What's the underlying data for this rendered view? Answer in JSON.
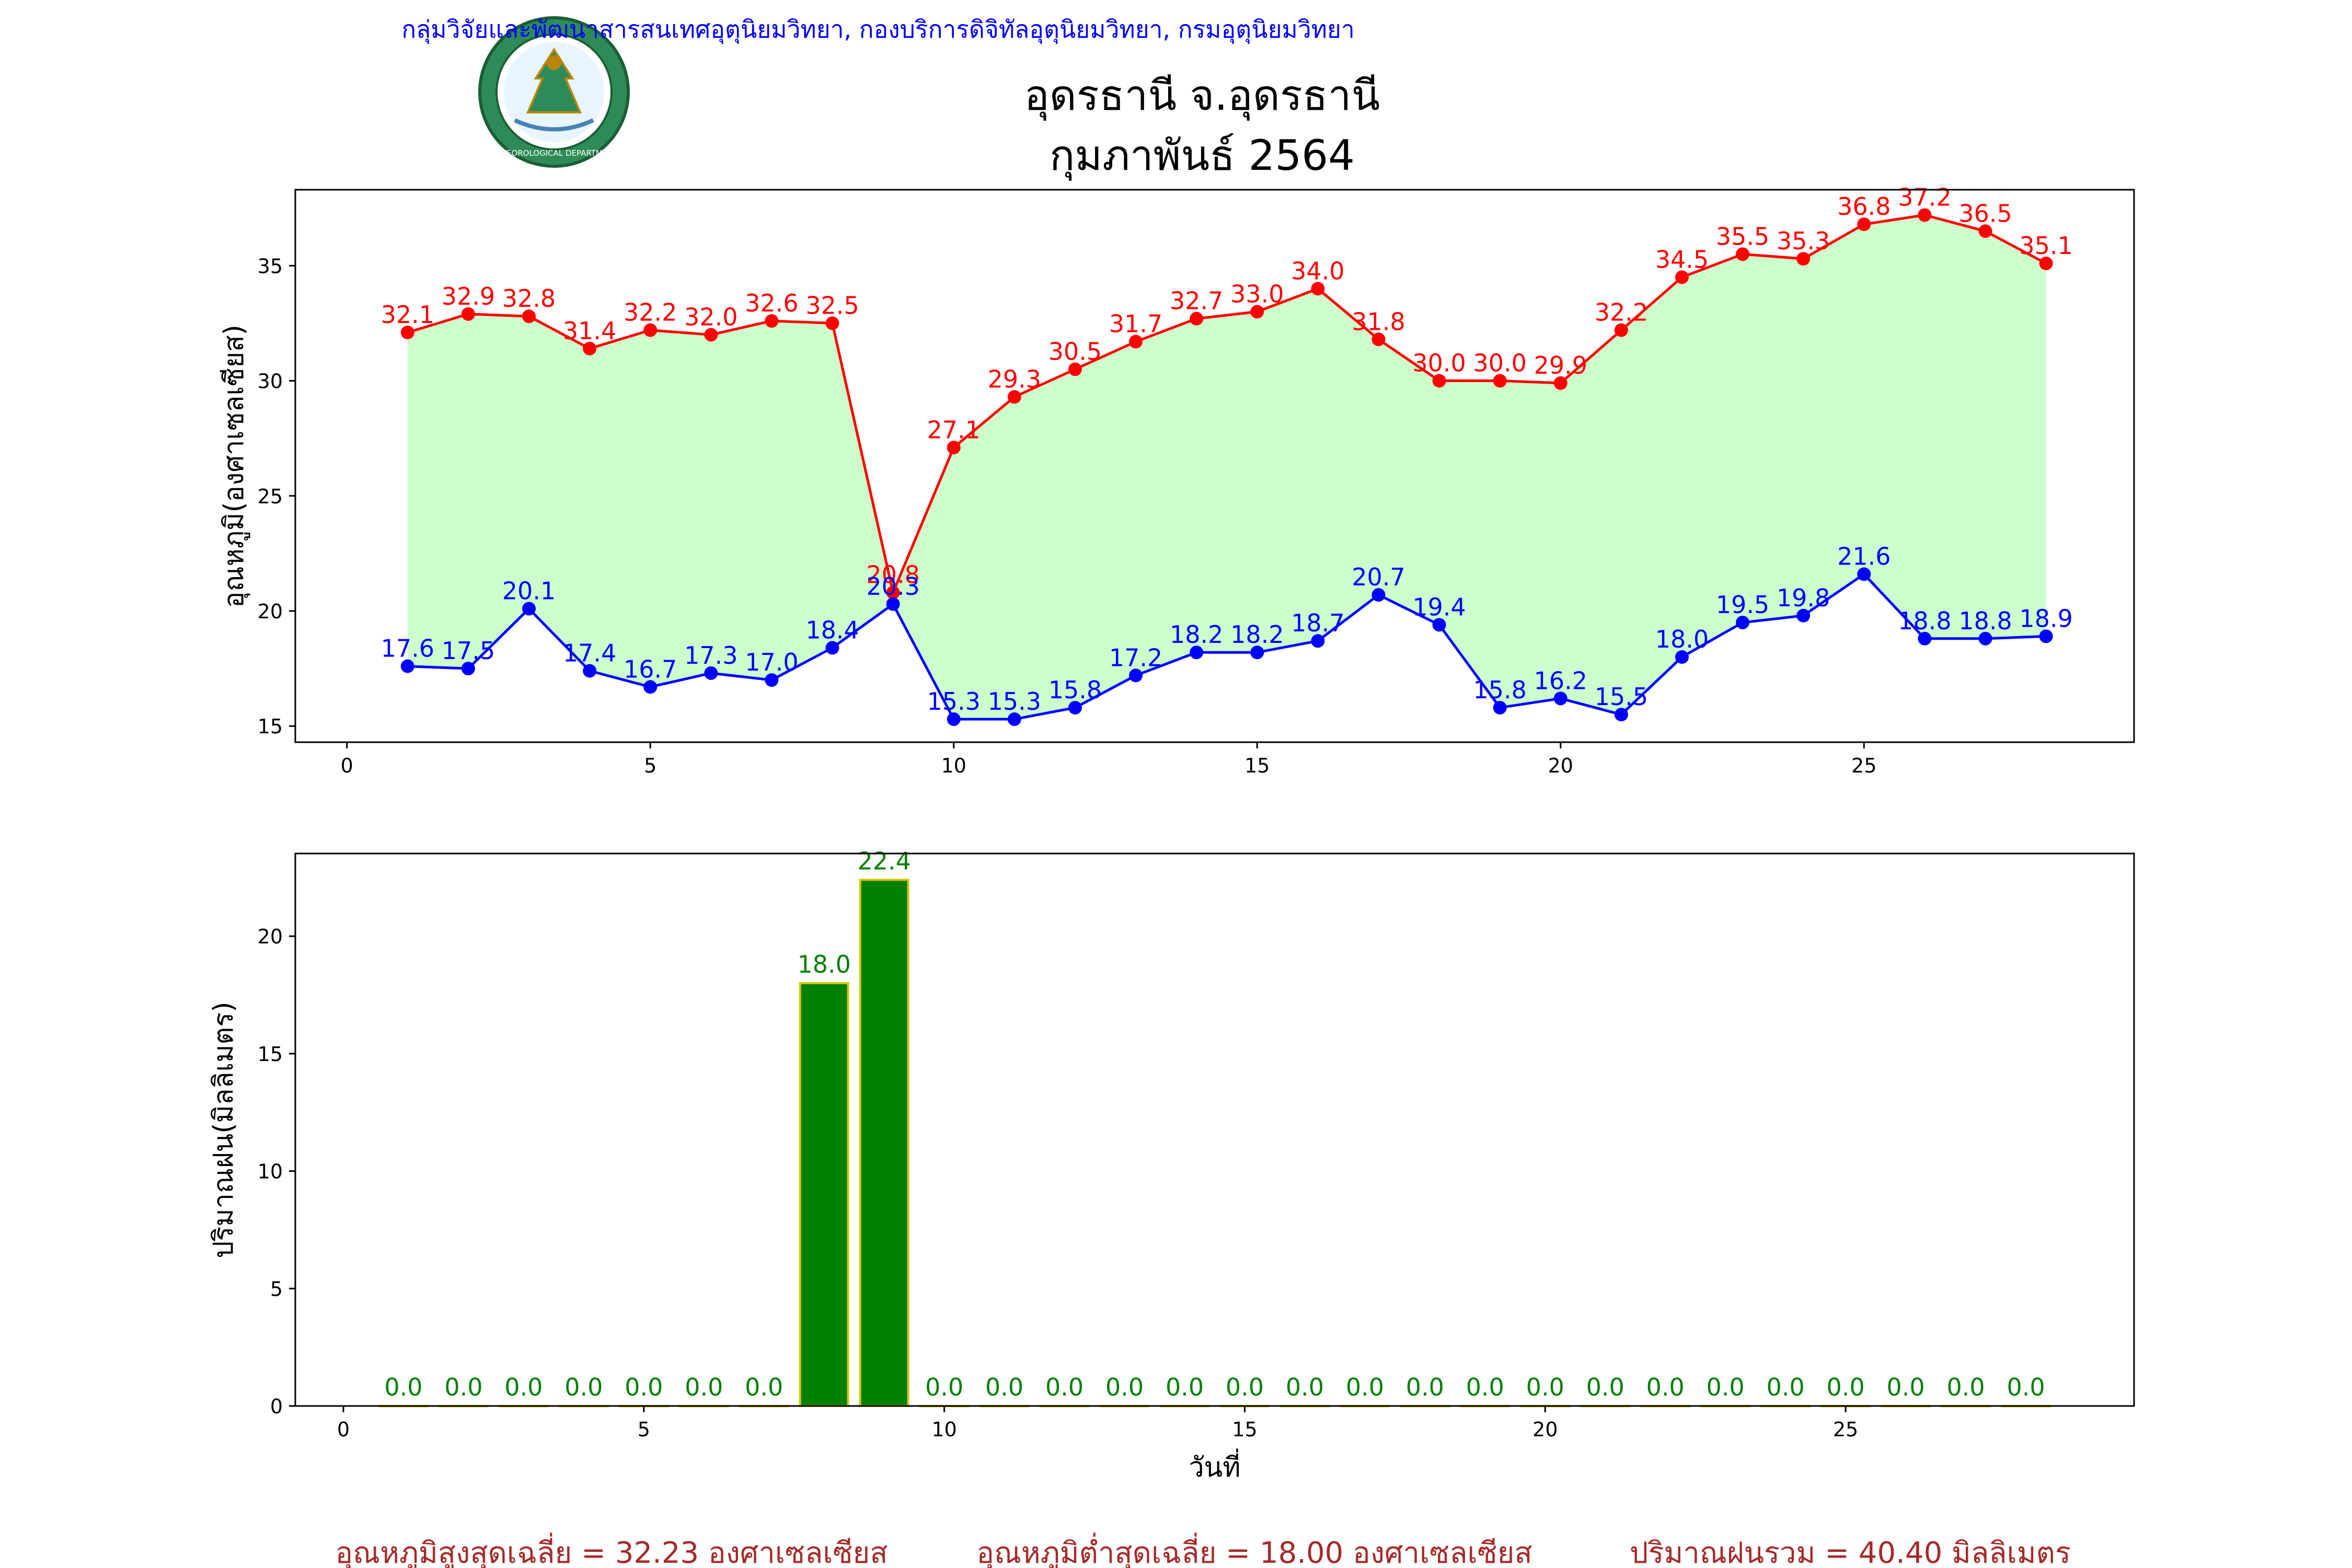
{
  "header": {
    "agency": "กลุ่มวิจัยและพัฒนาสารสนเทศอุตุนิยมวิทยา, กองบริการดิจิทัลอุตุนิยมวิทยา, กรมอุตุนิยมวิทยา",
    "station": "อุดรธานี จ.อุดรธานี",
    "period": "กุมภาพันธ์ 2564",
    "logo_text": "METEOROLOGICAL DEPARTMENT"
  },
  "footer": {
    "avg_max": "อุณหภูมิสูงสุดเฉลี่ย = 32.23 องศาเซลเซียส",
    "avg_min": "อุณหภูมิต่ำสุดเฉลี่ย = 18.00 องศาเซลเซียส",
    "rain_total": "ปริมาณฝนรวม = 40.40 มิลลิเมตร"
  },
  "colors": {
    "max_line": "#ff0000",
    "min_line": "#0000ff",
    "fill": "#ccffcc",
    "bar": "#008000",
    "bar_edge": "#d4c800",
    "bar_label": "#008000",
    "header_agency": "#0000ff",
    "footer_text": "#a52a2a"
  },
  "chart_data": [
    {
      "type": "line",
      "ylabel": "อุณหภูมิ(องศาเซลเซียส)",
      "xlabel": "",
      "xlim": [
        -0.85,
        29.45
      ],
      "ylim": [
        14.3,
        38.3
      ],
      "xticks": [
        0,
        5,
        10,
        15,
        20,
        25
      ],
      "yticks": [
        15,
        20,
        25,
        30,
        35
      ],
      "fill_between": true,
      "x": [
        1,
        2,
        3,
        4,
        5,
        6,
        7,
        8,
        9,
        10,
        11,
        12,
        13,
        14,
        15,
        16,
        17,
        18,
        19,
        20,
        21,
        22,
        23,
        24,
        25,
        26,
        27,
        28
      ],
      "series": [
        {
          "key": "max",
          "values": [
            32.1,
            32.9,
            32.8,
            31.4,
            32.2,
            32.0,
            32.6,
            32.5,
            20.8,
            27.1,
            29.3,
            30.5,
            31.7,
            32.7,
            33.0,
            34.0,
            31.8,
            30.0,
            30.0,
            29.9,
            32.2,
            34.5,
            35.5,
            35.3,
            36.8,
            37.2,
            36.5,
            35.1
          ],
          "labels": [
            "32.1",
            "32.9",
            "32.8",
            "31.4",
            "32.2",
            "32.0",
            "32.6",
            "32.5",
            "20.8",
            "27.1",
            "29.3",
            "30.5",
            "31.7",
            "32.7",
            "33.0",
            "34.0",
            "31.8",
            "30.0",
            "30.0",
            "29.9",
            "32.2",
            "34.5",
            "35.5",
            "35.3",
            "36.8",
            "37.2",
            "36.5",
            "35.1"
          ]
        },
        {
          "key": "min",
          "values": [
            17.6,
            17.5,
            20.1,
            17.4,
            16.7,
            17.3,
            17.0,
            18.4,
            20.3,
            15.3,
            15.3,
            15.8,
            17.2,
            18.2,
            18.2,
            18.7,
            20.7,
            19.4,
            15.8,
            16.2,
            15.5,
            18.0,
            19.5,
            19.8,
            21.6,
            18.8,
            18.8,
            18.9
          ],
          "labels": [
            "17.6",
            "17.5",
            "20.1",
            "17.4",
            "16.7",
            "17.3",
            "17.0",
            "18.4",
            "20.3",
            "15.3",
            "15.3",
            "15.8",
            "17.2",
            "18.2",
            "18.2",
            "18.7",
            "20.7",
            "19.4",
            "15.8",
            "16.2",
            "15.5",
            "18.0",
            "19.5",
            "19.8",
            "21.6",
            "18.8",
            "18.8",
            "18.9"
          ]
        }
      ]
    },
    {
      "type": "bar",
      "ylabel": "ปริมาณฝน(มิลลิเมตร)",
      "xlabel": "วันที่",
      "xlim": [
        -0.8,
        29.8
      ],
      "ylim": [
        0,
        23.52
      ],
      "xticks": [
        0,
        5,
        10,
        15,
        20,
        25
      ],
      "yticks": [
        0,
        5,
        10,
        15,
        20
      ],
      "x": [
        1,
        2,
        3,
        4,
        5,
        6,
        7,
        8,
        9,
        10,
        11,
        12,
        13,
        14,
        15,
        16,
        17,
        18,
        19,
        20,
        21,
        22,
        23,
        24,
        25,
        26,
        27,
        28
      ],
      "values": [
        0,
        0,
        0,
        0,
        0,
        0,
        0,
        18.0,
        22.4,
        0,
        0,
        0,
        0,
        0,
        0,
        0,
        0,
        0,
        0,
        0,
        0,
        0,
        0,
        0,
        0,
        0,
        0,
        0
      ],
      "labels": [
        "0.0",
        "0.0",
        "0.0",
        "0.0",
        "0.0",
        "0.0",
        "0.0",
        "18.0",
        "22.4",
        "0.0",
        "0.0",
        "0.0",
        "0.0",
        "0.0",
        "0.0",
        "0.0",
        "0.0",
        "0.0",
        "0.0",
        "0.0",
        "0.0",
        "0.0",
        "0.0",
        "0.0",
        "0.0",
        "0.0",
        "0.0",
        "0.0"
      ]
    }
  ]
}
